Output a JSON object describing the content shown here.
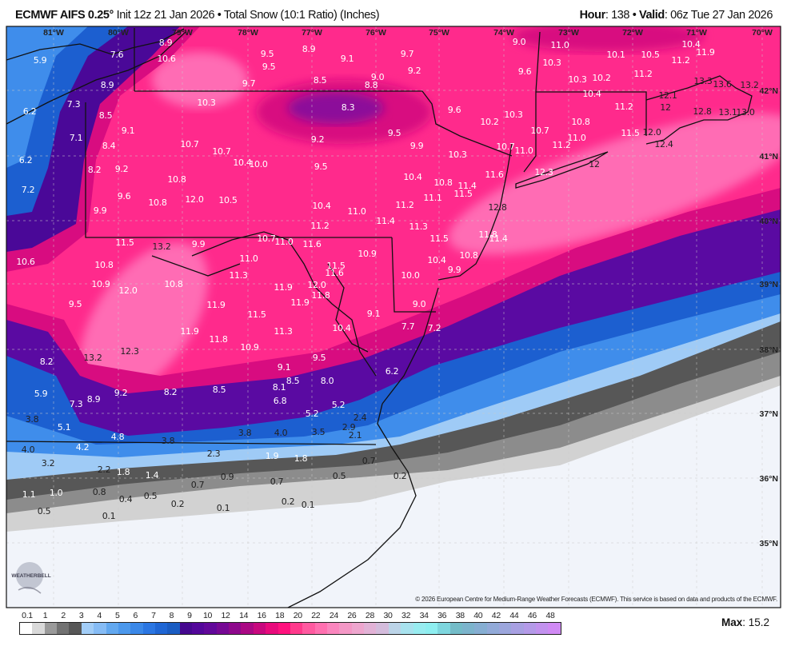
{
  "header": {
    "model": "ECMWF AIFS 0.25",
    "degree": "°",
    "init": " Init 12z 21 Jan 2026 • Total Snow (10:1 Ratio) (Inches)",
    "hour_label": "Hour",
    "hour_value": ": 138 • ",
    "valid_label": "Valid",
    "valid_value": ": 06z Tue 27 Jan 2026"
  },
  "map": {
    "longitude_labels": [
      "81°W",
      "80°W",
      "79°W",
      "78°W",
      "77°W",
      "76°W",
      "75°W",
      "74°W",
      "73°W",
      "72°W",
      "71°W",
      "70°W"
    ],
    "latitude_labels": [
      "42°N",
      "41°N",
      "40°N",
      "39°N",
      "38°N",
      "37°N",
      "36°N",
      "35°N"
    ],
    "snowfall_labels": [
      "8.9",
      "7.6",
      "10.6",
      "5.9",
      "9.5",
      "9.5",
      "8.9",
      "9.1",
      "9.7",
      "9.2",
      "9.0",
      "9.6",
      "11.0",
      "10.3",
      "10.1",
      "10.5",
      "10.4",
      "11.9",
      "11.2",
      "11.2",
      "9.7",
      "8.5",
      "9.0",
      "8.8",
      "8.9",
      "10.3",
      "10.2",
      "13.3",
      "13.6",
      "13.2",
      "10.3",
      "8.3",
      "9.6",
      "10.4",
      "12.1",
      "12",
      "11.2",
      "12.8",
      "13.1",
      "13.0",
      "7.3",
      "8.5",
      "6.2",
      "10.3",
      "10.2",
      "9.1",
      "7.1",
      "10.7",
      "10.8",
      "9.5",
      "9.2",
      "11.5",
      "12.0",
      "11.0",
      "11.2",
      "12.4",
      "10.7",
      "10.7",
      "8.4",
      "9.9",
      "10.7",
      "11.0",
      "10.3",
      "6.2",
      "10.4",
      "10.0",
      "9.5",
      "8.2",
      "9.2",
      "12.3",
      "12",
      "10.8",
      "11.6",
      "10.4",
      "10.8",
      "11.4",
      "11.5",
      "7.2",
      "9.6",
      "12.0",
      "10.5",
      "10.8",
      "11.1",
      "12.8",
      "9.9",
      "10.4",
      "11.0",
      "11.2",
      "11.4",
      "11.2",
      "11.3",
      "11.5",
      "13.2",
      "9.9",
      "10.7",
      "11.0",
      "11.6",
      "11.8",
      "11.4",
      "11.5",
      "10.6",
      "11.0",
      "10.9",
      "10.8",
      "10.4",
      "10.8",
      "11.5",
      "11.6",
      "9.9",
      "11.3",
      "10.0",
      "10.9",
      "12.0",
      "10.8",
      "12.0",
      "11.9",
      "11.8",
      "11.9",
      "9.0",
      "9.5",
      "11.9",
      "11.5",
      "9.1",
      "10.4",
      "7.7",
      "7.2",
      "11.9",
      "11.8",
      "11.3",
      "10.9",
      "12.3",
      "13.2",
      "9.5",
      "8.2",
      "9.1",
      "6.2",
      "8.5",
      "8.0",
      "8.1",
      "8.2",
      "8.5",
      "9.2",
      "5.9",
      "7.3",
      "8.9",
      "6.8",
      "5.2",
      "5.2",
      "3.8",
      "5.1",
      "2.4",
      "2.9",
      "4.8",
      "3.8",
      "3.8",
      "4.0",
      "3.5",
      "2.1",
      "4.0",
      "4.2",
      "2.3",
      "1.9",
      "1.8",
      "3.2",
      "2.2",
      "1.8",
      "1.4",
      "0.7",
      "0.9",
      "0.7",
      "0.7",
      "0.5",
      "0.2",
      "1.1",
      "1.0",
      "0.8",
      "0.4",
      "0.5",
      "0.2",
      "0.1",
      "0.2",
      "0.1",
      "0.5",
      "0.1"
    ],
    "logo_text": "WEATHERBELL",
    "copyright": "© 2026 European Centre for Medium-Range Weather Forecasts (ECMWF). This service is based on data and products of the ECMWF."
  },
  "legend": {
    "ticks": [
      "0.1",
      "1",
      "2",
      "3",
      "4",
      "5",
      "6",
      "7",
      "8",
      "9",
      "10",
      "12",
      "14",
      "16",
      "18",
      "20",
      "22",
      "24",
      "26",
      "28",
      "30",
      "32",
      "34",
      "36",
      "38",
      "40",
      "42",
      "44",
      "46",
      "48"
    ],
    "colors": [
      "#ffffff",
      "#d9d9d9",
      "#9a9a9a",
      "#727272",
      "#575757",
      "#a2cdf7",
      "#86bcf5",
      "#62a8ef",
      "#4c98ec",
      "#3b88e8",
      "#2b76e2",
      "#1f66d4",
      "#1a5cc2",
      "#45088f",
      "#53079a",
      "#62089a",
      "#760894",
      "#8e088c",
      "#aa0884",
      "#c8087e",
      "#e80a7c",
      "#ff127e",
      "#ff3a8c",
      "#ff5aa0",
      "#ff70b0",
      "#fa86be",
      "#f498c6",
      "#eea6ce",
      "#e2b2d6",
      "#d4bcdc",
      "#bcd4e8",
      "#a8e2ee",
      "#98ecf0",
      "#8eeef0",
      "#7ed6de",
      "#74bcc8",
      "#7cb4cc",
      "#86aed2",
      "#92aad8",
      "#9ca6dc",
      "#a8a0e2",
      "#b49ae8",
      "#c292ee",
      "#d08af4"
    ],
    "max_label": "Max",
    "max_value": ": 15.2"
  },
  "field_colors": {
    "pink": "#ff2a8c",
    "light_pink": "#ff6cb4",
    "magenta": "#d80c80",
    "purple": "#5a0aa2",
    "dark_purple": "#4a0898",
    "blue_dark": "#1c5fd0",
    "blue_mid": "#3f8deb",
    "blue_light": "#9fcbf6",
    "gray_dark": "#575757",
    "gray_mid": "#8c8c8c",
    "gray_light": "#d2d2d2",
    "none": "#f1f4fa"
  }
}
